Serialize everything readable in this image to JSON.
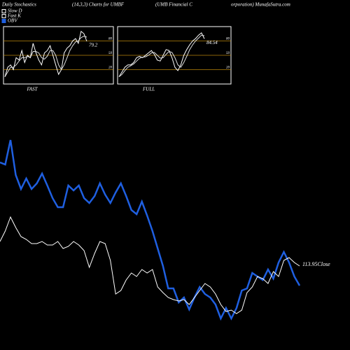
{
  "header": {
    "title": "Daily Stochastics",
    "params": "(14,3,3) Charts for UMBF",
    "company_a": "(UMB Financial C",
    "company_b": "orporation) MunafaSutra.com"
  },
  "chart_data": [
    {
      "type": "line",
      "label": "FAST",
      "ylim": [
        -10,
        110
      ],
      "yticks": [
        80,
        50,
        20
      ],
      "grid_color": "#b8860b",
      "series": [
        {
          "name": "Fast K",
          "color": "#ffffff",
          "values": [
            5,
            25,
            30,
            20,
            45,
            40,
            60,
            35,
            50,
            45,
            75,
            55,
            40,
            30,
            55,
            60,
            70,
            50,
            30,
            10,
            20,
            55,
            65,
            70,
            80,
            85,
            75,
            100,
            95,
            79.2
          ]
        },
        {
          "name": "Slow D",
          "color": "#dddddd",
          "values": [
            5,
            15,
            25,
            25,
            30,
            38,
            45,
            45,
            48,
            45,
            58,
            58,
            55,
            45,
            42,
            48,
            60,
            60,
            50,
            30,
            20,
            30,
            45,
            60,
            70,
            78,
            80,
            87,
            90,
            88
          ]
        }
      ]
    },
    {
      "type": "line",
      "label": "FULL",
      "ylim": [
        -10,
        110
      ],
      "yticks": [
        80,
        50,
        20
      ],
      "grid_color": "#b8860b",
      "series": [
        {
          "color": "#ffffff",
          "values": [
            5,
            15,
            25,
            30,
            30,
            35,
            45,
            48,
            45,
            50,
            55,
            60,
            52,
            40,
            38,
            50,
            62,
            60,
            45,
            25,
            18,
            30,
            50,
            62,
            72,
            80,
            85,
            92,
            97,
            84.54
          ]
        },
        {
          "color": "#dddddd",
          "values": [
            5,
            10,
            18,
            25,
            28,
            32,
            38,
            44,
            46,
            47,
            50,
            55,
            56,
            50,
            44,
            45,
            52,
            58,
            56,
            45,
            30,
            25,
            35,
            48,
            62,
            72,
            80,
            86,
            92,
            91
          ]
        }
      ]
    },
    {
      "type": "overlay",
      "annotation": "113.95Close",
      "series": [
        {
          "name": "OBV",
          "color": "#1f5fe0",
          "values": [
            268,
            265,
            300,
            250,
            230,
            245,
            230,
            238,
            252,
            235,
            217,
            204,
            204,
            235,
            228,
            235,
            217,
            210,
            220,
            238,
            222,
            210,
            225,
            238,
            220,
            200,
            194,
            212,
            192,
            170,
            145,
            120,
            88,
            88,
            68,
            75,
            58,
            75,
            90,
            80,
            75,
            65,
            45,
            60,
            45,
            60,
            85,
            88,
            110,
            105,
            100,
            115,
            102,
            125,
            140,
            125,
            105,
            92
          ]
        },
        {
          "color": "#ffffff",
          "values": [
            117.45,
            118.95,
            120.95,
            119.45,
            118.15,
            117.75,
            117.15,
            117.15,
            117.45,
            116.95,
            116.95,
            117.45,
            116.45,
            116.75,
            117.45,
            116.95,
            116.15,
            113.75,
            115.75,
            117.45,
            117.15,
            114.75,
            109.95,
            110.45,
            111.95,
            112.95,
            112.45,
            113.45,
            112.95,
            113.45,
            110.95,
            110.15,
            109.45,
            109.15,
            108.95,
            109.15,
            108.45,
            109.45,
            110.45,
            111.45,
            110.95,
            109.95,
            108.45,
            107.45,
            107.65,
            107.15,
            107.65,
            110.15,
            110.95,
            112.45,
            112.15,
            111.45,
            113.15,
            112.45,
            114.75,
            115.15,
            114.45,
            113.95
          ]
        }
      ]
    }
  ]
}
